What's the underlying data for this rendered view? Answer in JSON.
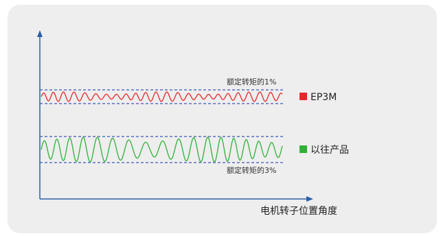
{
  "chart_data": {
    "type": "line",
    "xlabel": "电机转子位置角度",
    "ylabel": "",
    "grid": false,
    "legend_position": "right",
    "series": [
      {
        "name": "EP3M",
        "color": "#e8262b",
        "band_label": "额定转矩的1%",
        "band_label_position": "above",
        "band_width_pct": 1,
        "pattern": "high-frequency small-amplitude ripple"
      },
      {
        "name": "以往产品",
        "color": "#2eb135",
        "band_label": "额定转矩的3%",
        "band_label_position": "below",
        "band_width_pct": 3,
        "pattern": "irregular larger-amplitude ripple"
      }
    ],
    "band_line_color": "#3c55b8",
    "axis_color": "#2b5fa8"
  }
}
